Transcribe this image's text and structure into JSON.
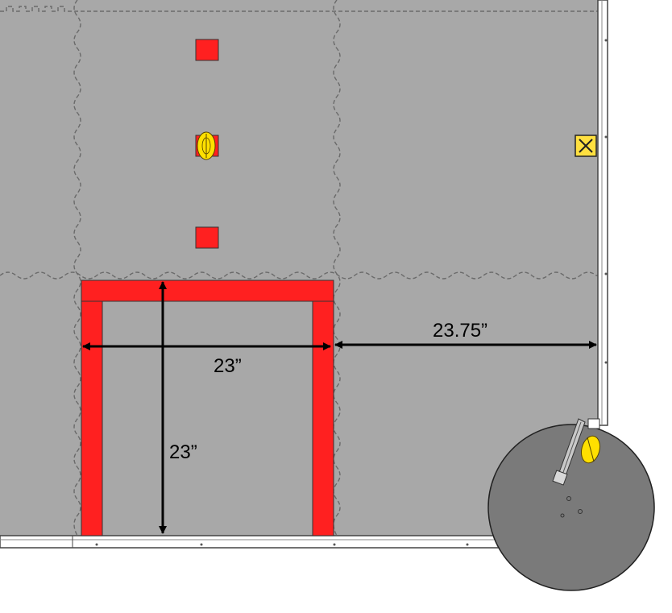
{
  "diagram": {
    "dimensions": {
      "frame_width": "23”",
      "frame_height": "23”",
      "gap_to_wall": "23.75”"
    },
    "colors": {
      "mat": "#a8a8a8",
      "mat_seam": "#6a6a6a",
      "frame_red": "#ff2020",
      "marker_red": "#ff2020",
      "yellow": "#ffe000",
      "disc": "#7a7a7a",
      "wall": "#ffffff",
      "arrow": "#000000"
    }
  }
}
